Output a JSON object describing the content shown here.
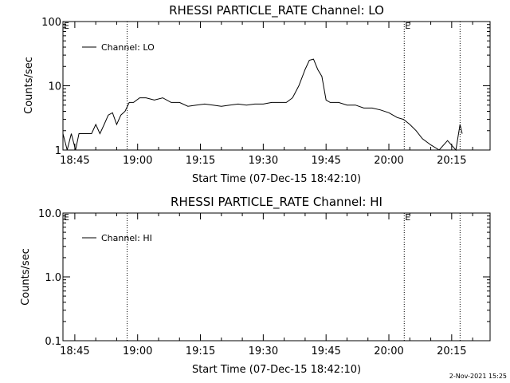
{
  "chart_data": [
    {
      "type": "line",
      "title": "RHESSI PARTICLE_RATE Channel: LO",
      "xlabel": "Start Time (07-Dec-15 18:42:10)",
      "ylabel": "Counts/sec",
      "yscale": "log",
      "ylim": [
        1,
        100
      ],
      "ytick_labels": [
        "1",
        "10",
        "100"
      ],
      "ytick_values": [
        1,
        10,
        100
      ],
      "xlim_minutes_after_1842_10": [
        0,
        102
      ],
      "xtick_labels": [
        "18:45",
        "19:00",
        "19:15",
        "19:30",
        "19:45",
        "20:00",
        "20:15"
      ],
      "legend": "top-left",
      "legend_entries": [
        "Channel: LO"
      ],
      "event_markers": [
        {
          "time": "18:57:30",
          "style": "dotted"
        },
        {
          "time": "20:03:40",
          "style": "dotted",
          "flag": "E"
        },
        {
          "time": "20:17:00",
          "style": "dotted"
        }
      ],
      "start_flag": "E",
      "series": [
        {
          "name": "Channel: LO",
          "x": [
            "18:42:10",
            "18:43:10",
            "18:44:10",
            "18:45:10",
            "18:46:00",
            "18:47:00",
            "18:48:10",
            "18:49:00",
            "18:50:00",
            "18:51:00",
            "18:52:00",
            "18:53:00",
            "18:54:00",
            "18:55:00",
            "18:56:00",
            "18:57:00",
            "18:58:00",
            "18:59:00",
            "19:00:30",
            "19:02:00",
            "19:04:00",
            "19:06:00",
            "19:08:00",
            "19:10:00",
            "19:12:00",
            "19:14:00",
            "19:16:00",
            "19:18:00",
            "19:20:00",
            "19:22:00",
            "19:24:00",
            "19:26:00",
            "19:28:00",
            "19:30:00",
            "19:32:00",
            "19:34:00",
            "19:35:30",
            "19:37:00",
            "19:38:30",
            "19:40:00",
            "19:41:00",
            "19:42:00",
            "19:43:00",
            "19:44:00",
            "19:45:00",
            "19:46:00",
            "19:48:00",
            "19:50:00",
            "19:52:00",
            "19:54:00",
            "19:56:00",
            "19:58:00",
            "20:00:00",
            "20:02:00",
            "20:03:30",
            "20:05:00",
            "20:06:30",
            "20:08:00",
            "20:10:00",
            "20:12:00",
            "20:14:00",
            "20:16:00",
            "20:17:00",
            "20:17:30"
          ],
          "y": [
            1.8,
            1,
            1.8,
            1,
            1.8,
            1.8,
            1.8,
            1.8,
            2.5,
            1.8,
            2.5,
            3.5,
            3.8,
            2.5,
            3.5,
            4.0,
            5.5,
            5.5,
            6.5,
            6.5,
            6.0,
            6.5,
            5.5,
            5.5,
            4.8,
            5.0,
            5.2,
            5.0,
            4.8,
            5.0,
            5.2,
            5.0,
            5.2,
            5.2,
            5.5,
            5.5,
            5.5,
            6.5,
            10,
            18,
            25,
            26,
            18,
            14,
            6.0,
            5.5,
            5.5,
            5.0,
            5.0,
            4.5,
            4.5,
            4.2,
            3.8,
            3.2,
            3.0,
            2.5,
            2.0,
            1.5,
            1.2,
            1.0,
            1.4,
            1.0,
            2.5,
            1.8
          ]
        }
      ]
    },
    {
      "type": "line",
      "title": "RHESSI PARTICLE_RATE Channel: HI",
      "xlabel": "Start Time (07-Dec-15 18:42:10)",
      "ylabel": "Counts/sec",
      "yscale": "log",
      "ylim": [
        0.1,
        10
      ],
      "ytick_labels": [
        "0.1",
        "1.0",
        "10.0"
      ],
      "ytick_values": [
        0.1,
        1,
        10
      ],
      "xlim_minutes_after_1842_10": [
        0,
        102
      ],
      "xtick_labels": [
        "18:45",
        "19:00",
        "19:15",
        "19:30",
        "19:45",
        "20:00",
        "20:15"
      ],
      "legend": "top-left",
      "legend_entries": [
        "Channel: HI"
      ],
      "event_markers": [
        {
          "time": "18:57:30",
          "style": "dotted"
        },
        {
          "time": "20:03:40",
          "style": "dotted",
          "flag": "E"
        },
        {
          "time": "20:17:00",
          "style": "dotted"
        }
      ],
      "start_flag": "E",
      "series": [
        {
          "name": "Channel: HI",
          "x": [],
          "y": []
        }
      ]
    }
  ],
  "timestamp": "2-Nov-2021 15:25"
}
